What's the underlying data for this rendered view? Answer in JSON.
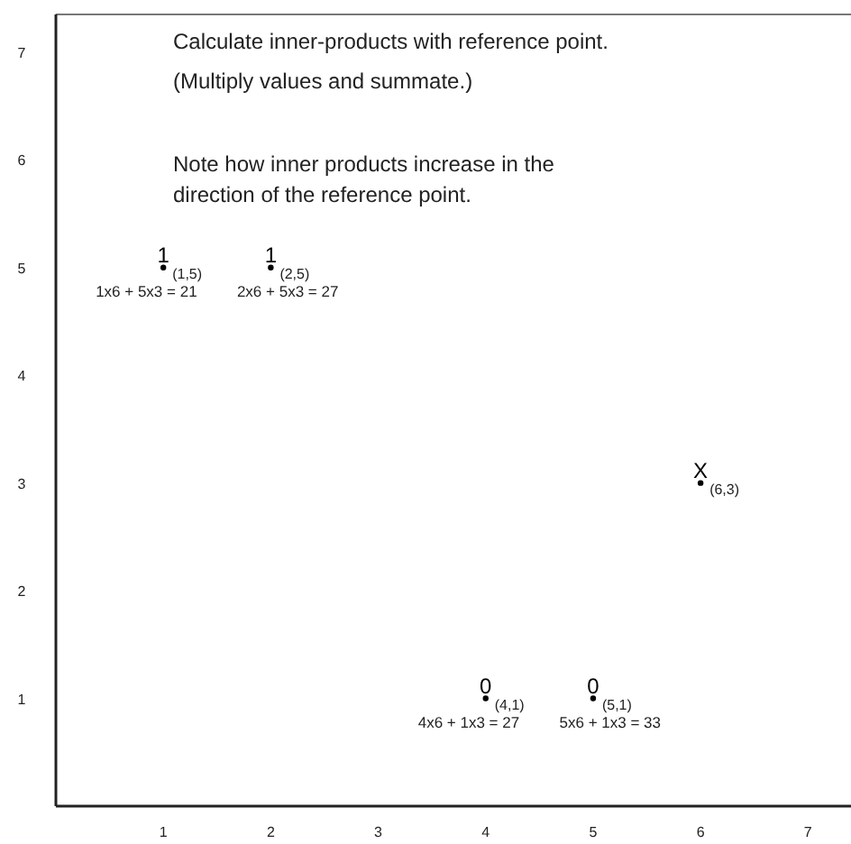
{
  "chart_data": {
    "type": "scatter",
    "xlim": [
      0,
      7.4
    ],
    "ylim": [
      0,
      7.35
    ],
    "xticks": [
      1,
      2,
      3,
      4,
      5,
      6,
      7
    ],
    "yticks": [
      1,
      2,
      3,
      4,
      5,
      6,
      7
    ],
    "marker": "circle",
    "series": [
      {
        "name": "1",
        "color": "#000000",
        "x": [
          1,
          2
        ],
        "values": [
          5,
          5
        ]
      },
      {
        "name": "0",
        "color": "#000000",
        "x": [
          4,
          5
        ],
        "values": [
          1,
          1
        ]
      },
      {
        "name": "X",
        "color": "#000000",
        "x": [
          6
        ],
        "values": [
          3
        ]
      }
    ],
    "annotations": [
      "Calculate inner-products with reference point.",
      "(Multiply values and summate.)",
      "Note how inner products increase in the",
      "direction of the reference point.",
      {
        "text": "(1,5)",
        "x": 1,
        "y": 5
      },
      {
        "text": "(2,5)",
        "x": 2,
        "y": 5
      },
      {
        "text": "(4,1)",
        "x": 4,
        "y": 1
      },
      {
        "text": "(5,1)",
        "x": 5,
        "y": 1
      },
      {
        "text": "(6,3)",
        "x": 6,
        "y": 3
      },
      {
        "text": "1x6 + 5x3 = 21",
        "x": 1,
        "y": 5
      },
      {
        "text": "2x6 + 5x3 = 27",
        "x": 2,
        "y": 5
      },
      {
        "text": "4x6 + 1x3 = 27",
        "x": 4,
        "y": 1
      },
      {
        "text": "5x6 + 1x3 = 33",
        "x": 5,
        "y": 1
      }
    ]
  }
}
